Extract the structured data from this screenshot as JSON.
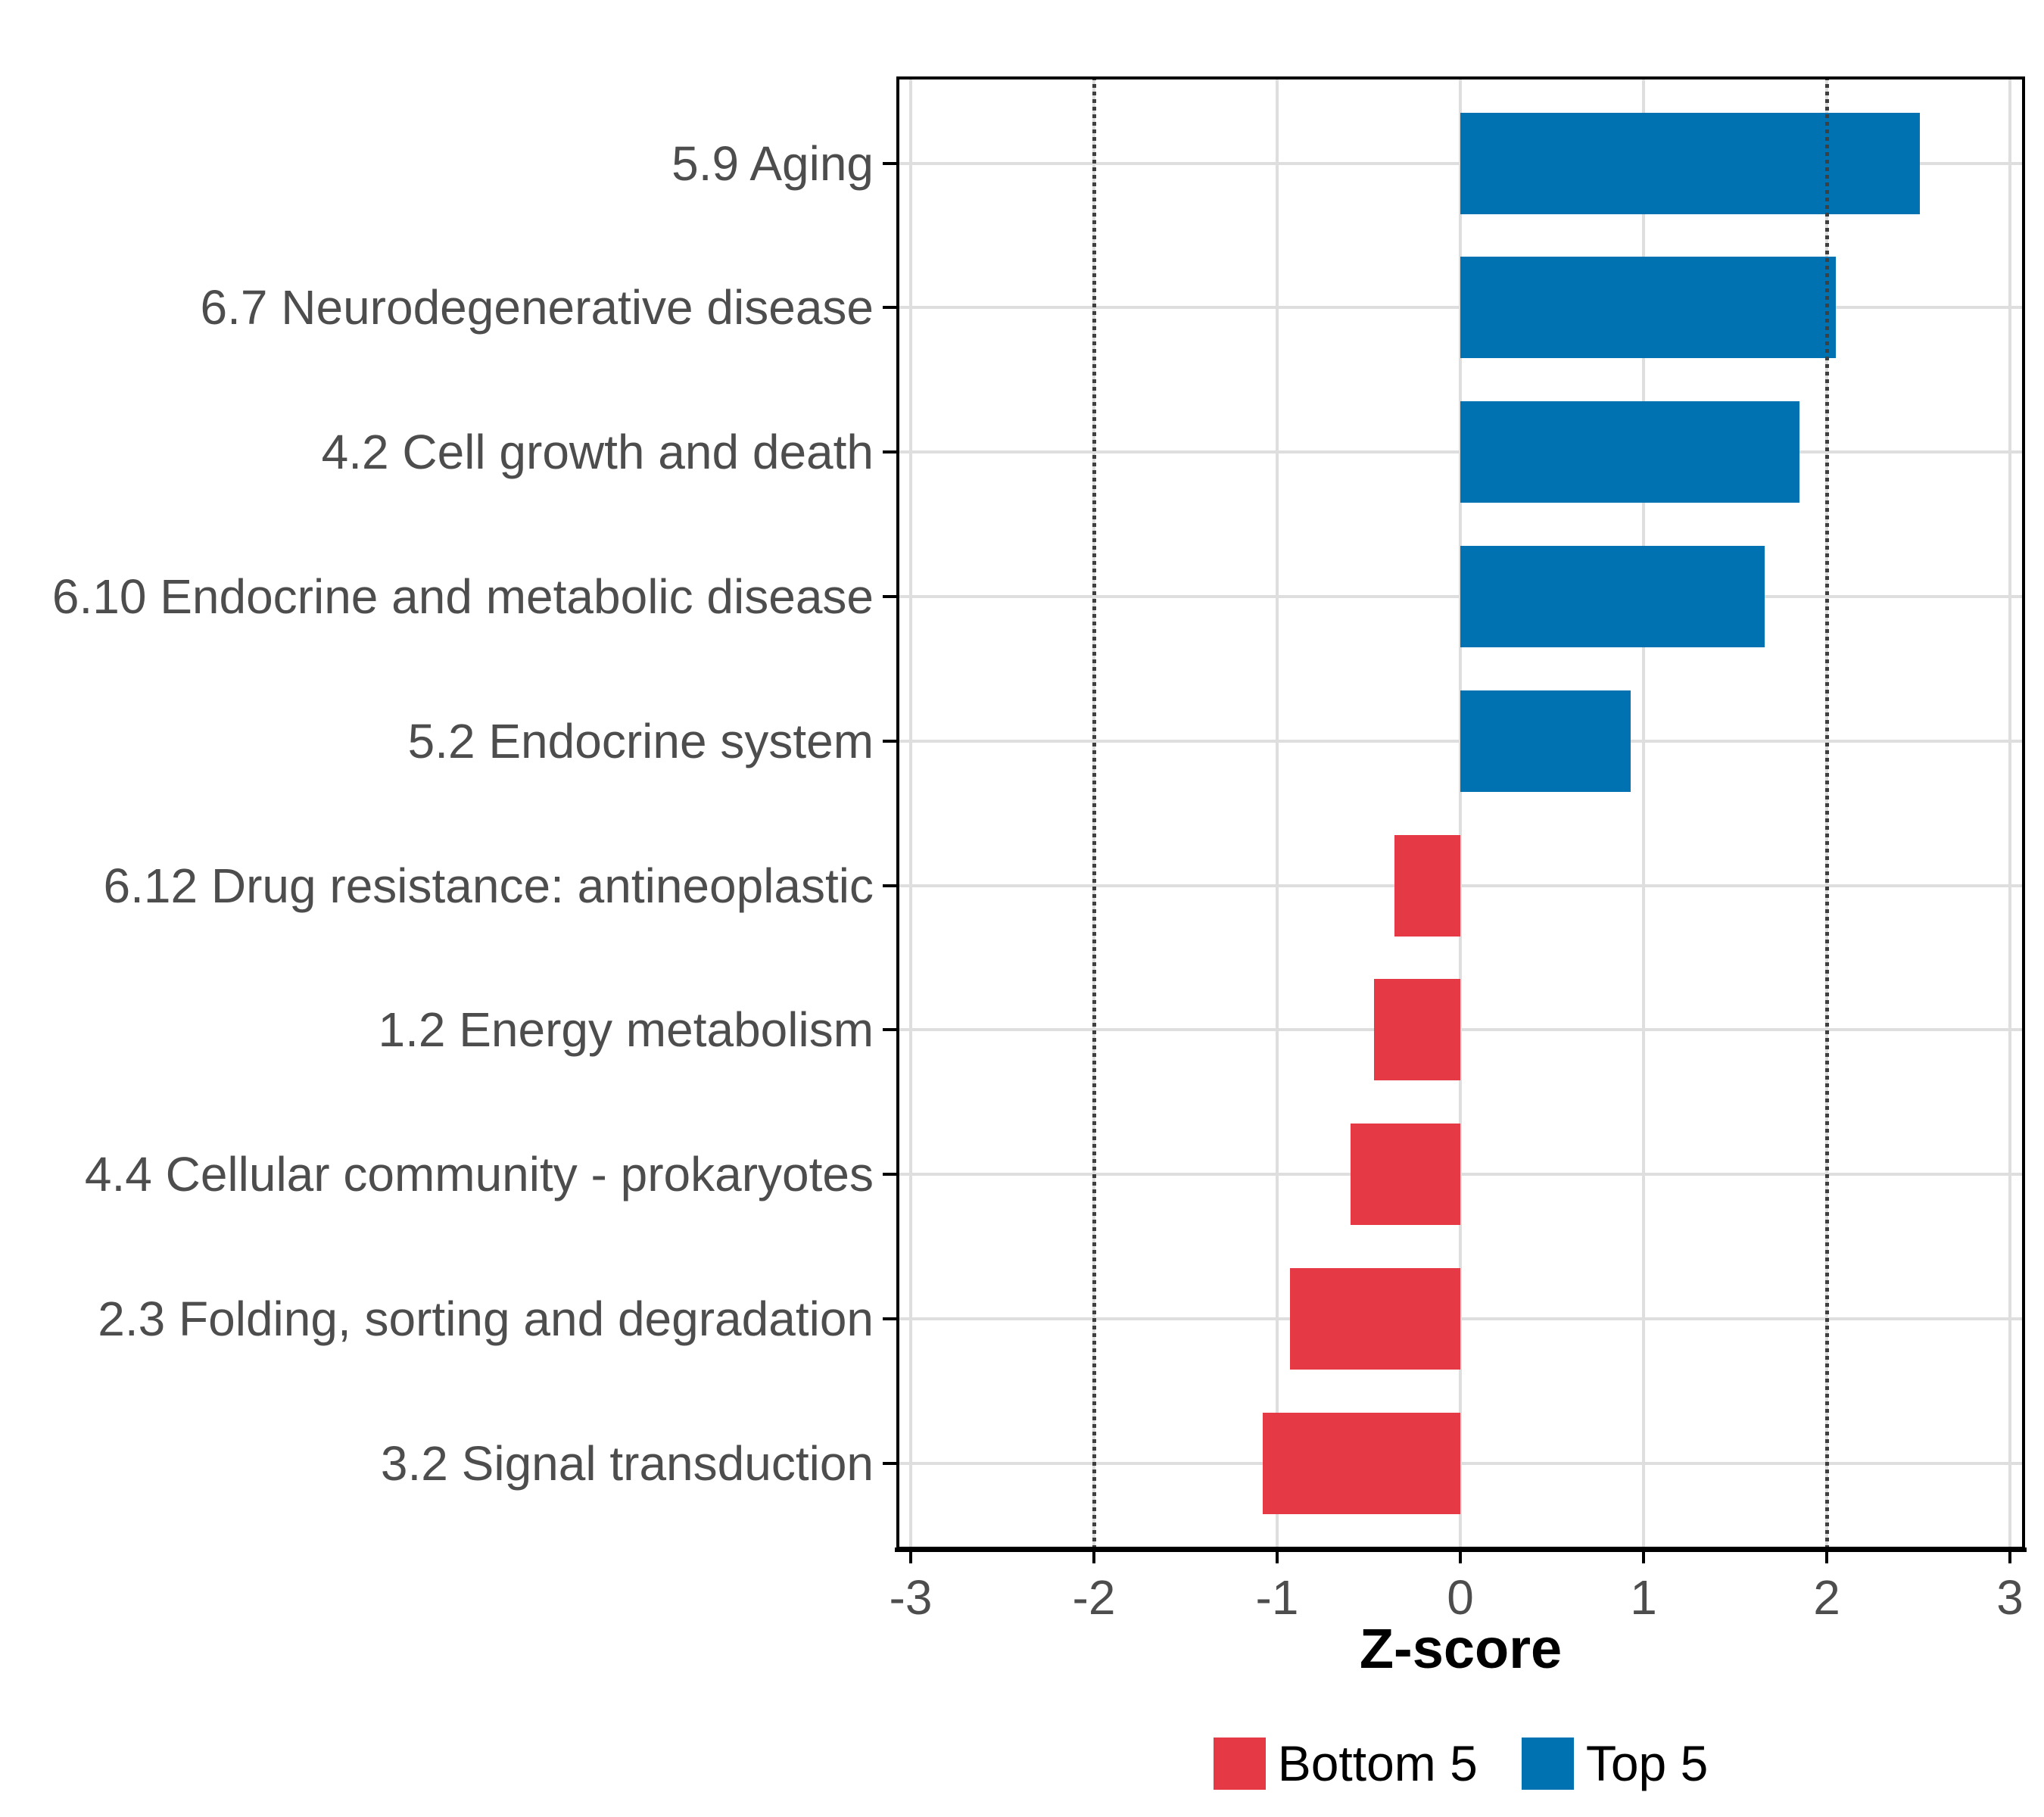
{
  "chart_data": {
    "type": "bar",
    "orientation": "horizontal",
    "title": "",
    "xlabel": "Z-score",
    "x_tick_labels": [
      "-3",
      "-2",
      "-1",
      "0",
      "1",
      "2",
      "3"
    ],
    "x_tick_values": [
      -3,
      -2,
      -1,
      0,
      1,
      2,
      3
    ],
    "xlim": [
      -3.08,
      3.08
    ],
    "reference_lines": [
      -2,
      2
    ],
    "grid": {
      "major": true,
      "minor": false
    },
    "legend_position": "bottom",
    "bars": [
      {
        "category": "5.9 Aging",
        "value": 2.51,
        "group": "Top 5"
      },
      {
        "category": "6.7 Neurodegenerative disease",
        "value": 2.05,
        "group": "Top 5"
      },
      {
        "category": "4.2 Cell growth and death",
        "value": 1.85,
        "group": "Top 5"
      },
      {
        "category": "6.10 Endocrine and metabolic disease",
        "value": 1.66,
        "group": "Top 5"
      },
      {
        "category": "5.2 Endocrine system",
        "value": 0.93,
        "group": "Top 5"
      },
      {
        "category": "6.12 Drug resistance: antineoplastic",
        "value": -0.36,
        "group": "Bottom 5"
      },
      {
        "category": "1.2 Energy metabolism",
        "value": -0.47,
        "group": "Bottom 5"
      },
      {
        "category": "4.4 Cellular community - prokaryotes",
        "value": -0.6,
        "group": "Bottom 5"
      },
      {
        "category": "2.3 Folding, sorting and degradation",
        "value": -0.93,
        "group": "Bottom 5"
      },
      {
        "category": "3.2 Signal transduction",
        "value": -1.08,
        "group": "Bottom 5"
      }
    ],
    "legend": [
      {
        "label": "Bottom 5",
        "color": "#E63946"
      },
      {
        "label": "Top 5",
        "color": "#0072B2"
      }
    ],
    "colors": {
      "Bottom 5": "#E63946",
      "Top 5": "#0072B2"
    },
    "style_colors": {
      "grid": "#DEDEDE",
      "axis_text": "#4D4D4D",
      "reference_line": "#3F3F3F",
      "panel_border": "#000000",
      "tick": "#000000"
    }
  }
}
